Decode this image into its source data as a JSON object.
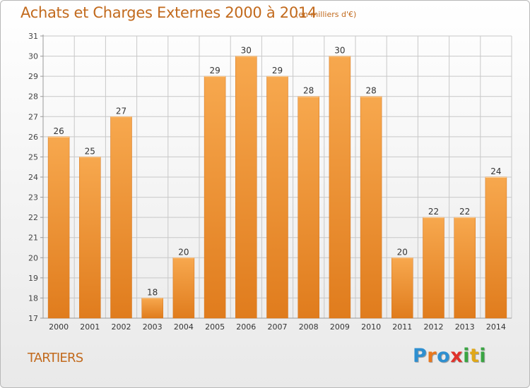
{
  "header": {
    "title": "Achats et Charges Externes 2000 à 2014",
    "subtitle": "(en milliers d'€)"
  },
  "commune": "TARTIERS",
  "logo": {
    "letters": [
      "P",
      "r",
      "o",
      "x",
      "i",
      "t",
      "i"
    ],
    "colors": [
      "#2e8fd0",
      "#e8781e",
      "#2e8fd0",
      "#e0322a",
      "#3aa543",
      "#e0a818",
      "#3aa543"
    ]
  },
  "chart_data": {
    "type": "bar",
    "categories": [
      "2000",
      "2001",
      "2002",
      "2003",
      "2004",
      "2005",
      "2006",
      "2007",
      "2008",
      "2009",
      "2010",
      "2011",
      "2012",
      "2013",
      "2014"
    ],
    "values": [
      26,
      25,
      27,
      18,
      20,
      29,
      30,
      29,
      28,
      30,
      28,
      20,
      22,
      22,
      24
    ],
    "title": "Achats et Charges Externes 2000 à 2014",
    "xlabel": "",
    "ylabel": "",
    "ylim": [
      17,
      31
    ],
    "yticks": [
      "17",
      "18",
      "19",
      "20",
      "21",
      "22",
      "23",
      "24",
      "25",
      "26",
      "27",
      "28",
      "29",
      "30",
      "31"
    ],
    "grid": true,
    "colors": {
      "bar_light": "#f7a84e",
      "bar_dark": "#e07c1d",
      "grid": "#c8c8c8"
    }
  }
}
